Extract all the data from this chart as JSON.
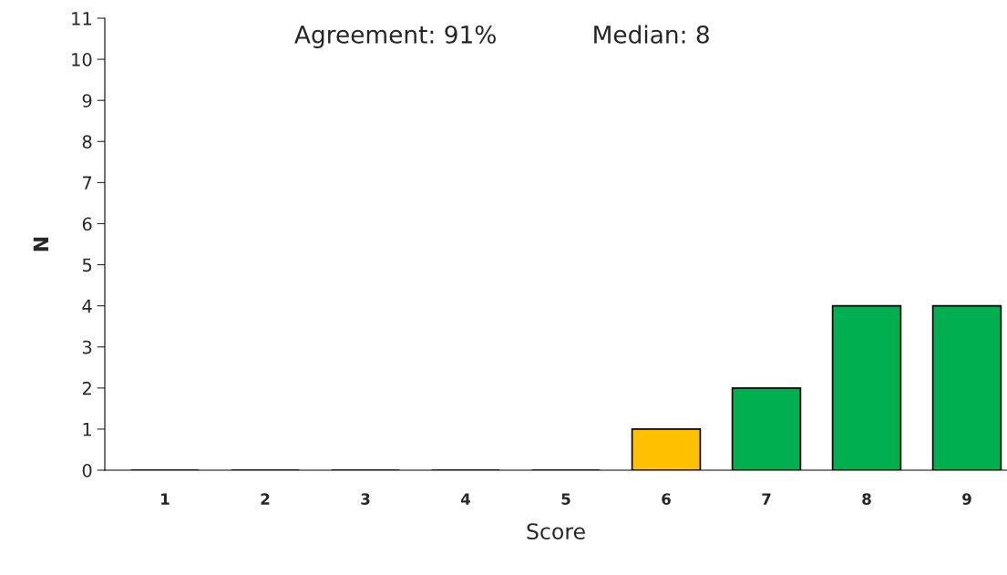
{
  "chart_data": {
    "type": "bar",
    "xlabel": "Score",
    "ylabel": "N",
    "categories": [
      "1",
      "2",
      "3",
      "4",
      "5",
      "6",
      "7",
      "8",
      "9"
    ],
    "values": [
      0,
      0,
      0,
      0,
      0,
      1,
      2,
      4,
      4
    ],
    "colors": [
      "#00b050",
      "#00b050",
      "#00b050",
      "#00b050",
      "#00b050",
      "#ffc000",
      "#00b050",
      "#00b050",
      "#00b050"
    ],
    "ylim": [
      0,
      11
    ],
    "yticks": [
      0,
      1,
      2,
      3,
      4,
      5,
      6,
      7,
      8,
      9,
      10,
      11
    ],
    "grid": false,
    "annotations": [
      "Agreement: 91%",
      "Median: 8"
    ]
  }
}
